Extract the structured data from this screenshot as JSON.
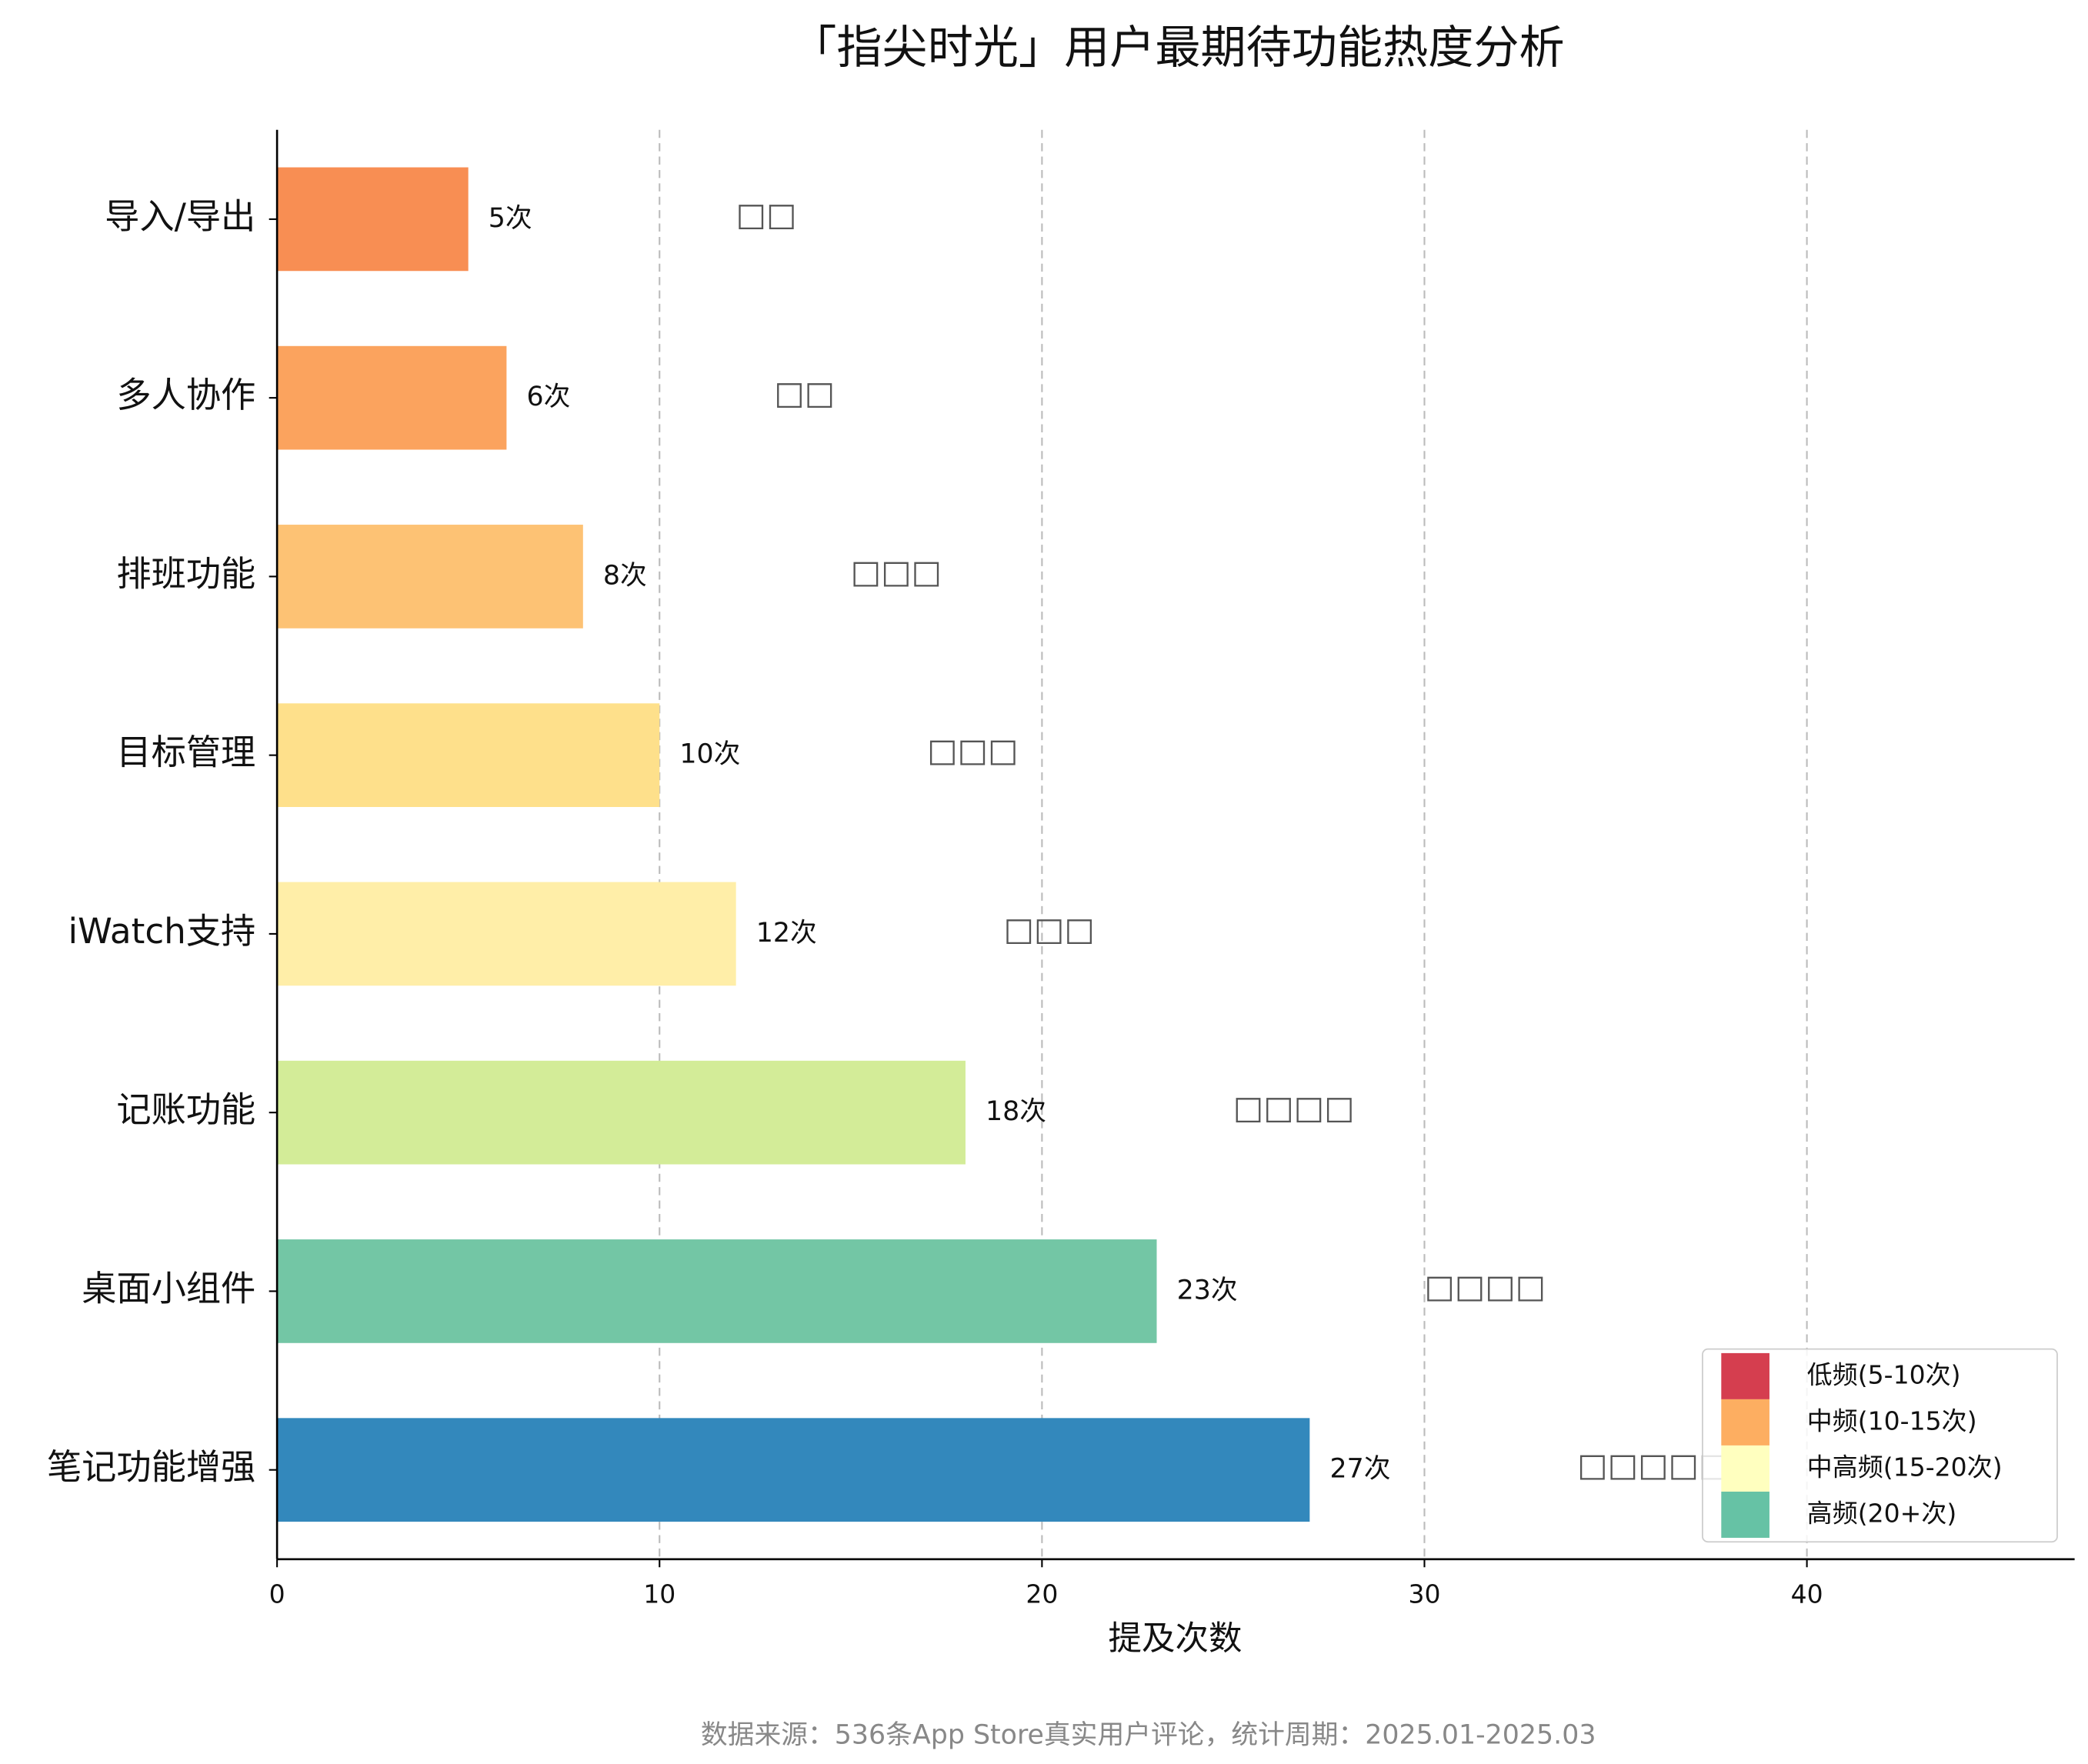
{
  "chart_data": {
    "type": "barh",
    "title": "「指尖时光」用户最期待功能热度分析",
    "x_label": "提及次数",
    "footnote": "数据来源：536条App Store真实用户评论，统计周期：2025.01-2025.03",
    "categories": [
      "导入/导出",
      "多人协作",
      "排班功能",
      "目标管理",
      "iWatch支持",
      "记账功能",
      "桌面小组件",
      "笔记功能增强"
    ],
    "values": [
      5,
      6,
      8,
      10,
      12,
      18,
      23,
      27
    ],
    "value_labels": [
      "5次",
      "6次",
      "8次",
      "10次",
      "12次",
      "18次",
      "23次",
      "27次"
    ],
    "icons": [
      "□□",
      "□□",
      "□□□",
      "□□□",
      "□□□",
      "□□□□",
      "□□□□",
      "□□□□□"
    ],
    "colors": [
      "#f88e53",
      "#fba35e",
      "#fdc274",
      "#fee08b",
      "#ffeea8",
      "#d3ec98",
      "#73c6a5",
      "#3388bc"
    ],
    "xlim": [
      0,
      47
    ],
    "xticks": [
      0,
      10,
      20,
      30,
      40
    ],
    "grid": true,
    "legend_position": "lower right",
    "legend": [
      {
        "name": "低频(5-10次)",
        "color": "#d53e4f"
      },
      {
        "name": "中频(10-15次)",
        "color": "#fdae61"
      },
      {
        "name": "中高频(15-20次)",
        "color": "#ffffbf"
      },
      {
        "name": "高频(20+次)",
        "color": "#66c2a5"
      }
    ]
  }
}
